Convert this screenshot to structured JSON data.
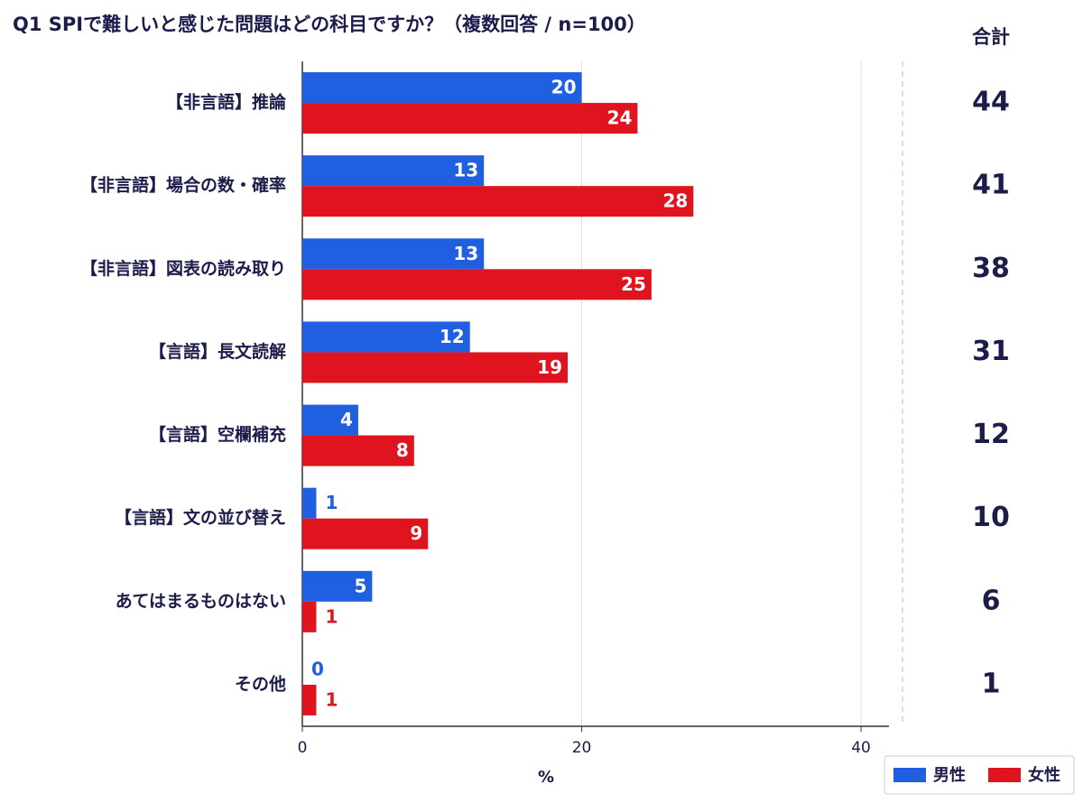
{
  "chart_data": {
    "type": "bar",
    "orientation": "horizontal",
    "title": "Q1  SPIで難しいと感じた問題はどの科目ですか？（複数回答 / n=100）",
    "categories": [
      "【非言語】推論",
      "【非言語】場合の数・確率",
      "【非言語】図表の読み取り",
      "【言語】長文読解",
      "【言語】空欄補充",
      "【言語】文の並び替え",
      "あてはまるものはない",
      "その他"
    ],
    "series": [
      {
        "name": "男性",
        "color": "#1f5fe0",
        "values": [
          20,
          13,
          13,
          12,
          4,
          1,
          5,
          0
        ]
      },
      {
        "name": "女性",
        "color": "#e0141e",
        "values": [
          24,
          28,
          25,
          19,
          8,
          9,
          1,
          1
        ]
      }
    ],
    "totals_header": "合計",
    "totals": [
      44,
      41,
      38,
      31,
      12,
      10,
      6,
      1
    ],
    "xlabel": "%",
    "xlim": [
      0,
      42
    ],
    "xticks": [
      0,
      20,
      40
    ],
    "grid": true,
    "legend": "bottom-right"
  }
}
